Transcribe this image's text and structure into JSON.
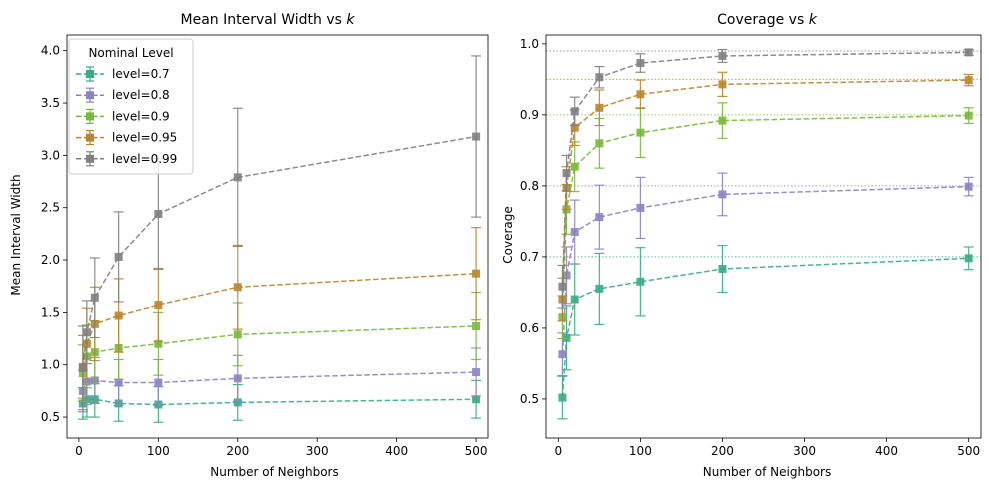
{
  "legend": {
    "title": "Nominal Level",
    "placement": "upper-left"
  },
  "chart_data": [
    {
      "type": "line",
      "title": "Mean Interval Width vs ",
      "title_var": "k",
      "xlabel": "Number of Neighbors",
      "ylabel": "Mean Interval Width",
      "xlim": [
        -15,
        515
      ],
      "ylim": [
        0.3,
        4.15
      ],
      "xticks": [
        0,
        100,
        200,
        300,
        400,
        500
      ],
      "yticks": [
        0.5,
        1.0,
        1.5,
        2.0,
        2.5,
        3.0,
        3.5,
        4.0
      ],
      "ytick_labels": [
        "0.5",
        "1.0",
        "1.5",
        "2.0",
        "2.5",
        "3.0",
        "3.5",
        "4.0"
      ],
      "x": [
        5,
        10,
        20,
        50,
        100,
        200,
        500
      ],
      "series": [
        {
          "name": "level=0.7",
          "color": "#3aab84",
          "values": [
            0.63,
            0.67,
            0.67,
            0.63,
            0.62,
            0.64,
            0.67
          ],
          "err": [
            0.15,
            0.17,
            0.17,
            0.17,
            0.17,
            0.17,
            0.18
          ]
        },
        {
          "name": "level=0.8",
          "color": "#8e83c2",
          "values": [
            0.75,
            0.84,
            0.85,
            0.83,
            0.83,
            0.87,
            0.93
          ],
          "err": [
            0.2,
            0.22,
            0.22,
            0.22,
            0.22,
            0.22,
            0.23
          ]
        },
        {
          "name": "level=0.9",
          "color": "#7ab83c",
          "values": [
            0.92,
            1.08,
            1.12,
            1.16,
            1.2,
            1.29,
            1.37
          ],
          "err": [
            0.27,
            0.3,
            0.3,
            0.3,
            0.3,
            0.3,
            0.32
          ]
        },
        {
          "name": "level=0.95",
          "color": "#b8862e",
          "values": [
            0.98,
            1.2,
            1.39,
            1.47,
            1.57,
            1.74,
            1.87
          ],
          "err": [
            0.3,
            0.34,
            0.35,
            0.35,
            0.35,
            0.4,
            0.44
          ]
        },
        {
          "name": "level=0.99",
          "color": "#808080",
          "values": [
            0.97,
            1.31,
            1.64,
            2.03,
            2.44,
            2.79,
            3.18
          ],
          "err": [
            0.4,
            0.3,
            0.38,
            0.43,
            0.53,
            0.66,
            0.77
          ]
        }
      ]
    },
    {
      "type": "line",
      "title": "Coverage vs ",
      "title_var": "k",
      "xlabel": "Number of Neighbors",
      "ylabel": "Coverage",
      "xlim": [
        -15,
        515
      ],
      "ylim": [
        0.445,
        1.0125
      ],
      "xticks": [
        0,
        100,
        200,
        300,
        400,
        500
      ],
      "yticks": [
        0.5,
        0.6,
        0.7,
        0.8,
        0.9,
        1.0
      ],
      "ytick_labels": [
        "0.5",
        "0.6",
        "0.7",
        "0.8",
        "0.9",
        "1.0"
      ],
      "reference_lines": [
        0.7,
        0.8,
        0.9,
        0.95,
        0.99
      ],
      "x": [
        5,
        10,
        20,
        50,
        100,
        200,
        500
      ],
      "series": [
        {
          "name": "level=0.7",
          "color": "#3aab84",
          "values": [
            0.502,
            0.586,
            0.64,
            0.655,
            0.665,
            0.683,
            0.698
          ],
          "err": [
            0.03,
            0.045,
            0.05,
            0.05,
            0.048,
            0.033,
            0.016
          ]
        },
        {
          "name": "level=0.8",
          "color": "#8e83c2",
          "values": [
            0.563,
            0.674,
            0.735,
            0.756,
            0.769,
            0.788,
            0.799
          ],
          "err": [
            0.03,
            0.04,
            0.045,
            0.045,
            0.043,
            0.03,
            0.013
          ]
        },
        {
          "name": "level=0.9",
          "color": "#7ab83c",
          "values": [
            0.615,
            0.767,
            0.827,
            0.86,
            0.875,
            0.892,
            0.899
          ],
          "err": [
            0.03,
            0.035,
            0.035,
            0.035,
            0.035,
            0.025,
            0.011
          ]
        },
        {
          "name": "level=0.95",
          "color": "#b8862e",
          "values": [
            0.64,
            0.797,
            0.882,
            0.91,
            0.929,
            0.943,
            0.949
          ],
          "err": [
            0.03,
            0.03,
            0.025,
            0.025,
            0.02,
            0.017,
            0.008
          ]
        },
        {
          "name": "level=0.99",
          "color": "#808080",
          "values": [
            0.658,
            0.818,
            0.905,
            0.953,
            0.973,
            0.983,
            0.988
          ],
          "err": [
            0.03,
            0.025,
            0.02,
            0.015,
            0.013,
            0.009,
            0.004
          ]
        }
      ]
    }
  ]
}
